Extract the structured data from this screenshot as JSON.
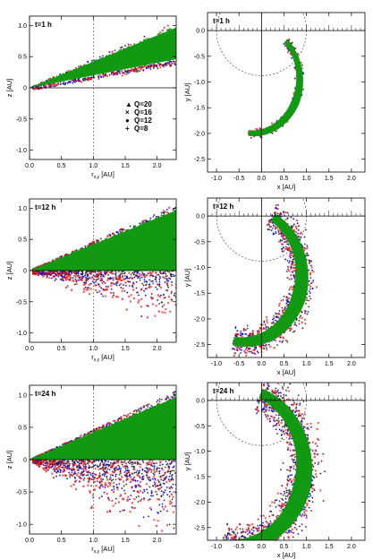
{
  "chart_data": [
    {
      "type": "scatter",
      "panel": "z-vs-rxy",
      "time_label": "t=1 h",
      "xlabel": "r_{x,y} [AU]",
      "ylabel": "z [AU]",
      "xlim": [
        0,
        2.3
      ],
      "ylim": [
        -1.15,
        1.15
      ],
      "xticks": [
        "0.0",
        "0.5",
        "1.0",
        "1.5",
        "2.0"
      ],
      "yticks": [
        "-1.0",
        "-0.5",
        "0",
        "0.5",
        "1.0"
      ],
      "ref_line_x": 1.0,
      "legend": {
        "placement": "center-right",
        "entries": [
          {
            "symbol": "▲",
            "label": "Q=20",
            "color": "#119911"
          },
          {
            "symbol": "×",
            "label": "Q=16",
            "color": "#dd1111"
          },
          {
            "symbol": "●",
            "label": "Q=12",
            "color": "#1111dd"
          },
          {
            "symbol": "+",
            "label": "Q=8",
            "color": "#111111"
          }
        ]
      },
      "series_colors": {
        "Q20": "#119911",
        "Q16": "#dd1111",
        "Q12": "#1111dd",
        "Q8": "#111111"
      },
      "wedge": {
        "upper_slope": 0.42,
        "lower_slope": 0.2,
        "lower_spread": 0.05
      }
    },
    {
      "type": "scatter",
      "panel": "y-vs-x",
      "time_label": "t=1 h",
      "xlabel": "x [AU]",
      "ylabel": "y [AU]",
      "xlim": [
        -1.2,
        2.3
      ],
      "ylim": [
        -2.75,
        0.35
      ],
      "xticks": [
        "-1.0",
        "-0.5",
        "0.0",
        "0.5",
        "1.0",
        "1.5",
        "2.0"
      ],
      "yticks": [
        "0.0",
        "-0.5",
        "-1.0",
        "-1.5",
        "-2.0",
        "-2.5"
      ],
      "ref_circle_radius": 1.0,
      "arc": {
        "center": [
          -0.2,
          -0.95
        ],
        "radius": 1.05,
        "width": 0.14,
        "spread": 0.05,
        "theta_start": -95,
        "theta_end": 45
      }
    },
    {
      "type": "scatter",
      "panel": "z-vs-rxy",
      "time_label": "t=12 h",
      "xlabel": "r_{x,y} [AU]",
      "ylabel": "z [AU]",
      "xlim": [
        0,
        2.3
      ],
      "ylim": [
        -1.15,
        1.15
      ],
      "xticks": [
        "0.0",
        "0.5",
        "1.0",
        "1.5",
        "2.0"
      ],
      "yticks": [
        "-1.0",
        "-0.5",
        "0",
        "0.5",
        "1.0"
      ],
      "ref_line_x": 1.0,
      "wedge": {
        "upper_slope": 0.42,
        "lower_slope": 0.05,
        "lower_spread": 0.6
      }
    },
    {
      "type": "scatter",
      "panel": "y-vs-x",
      "time_label": "t=12 h",
      "xlabel": "x [AU]",
      "ylabel": "y [AU]",
      "xlim": [
        -1.2,
        2.3
      ],
      "ylim": [
        -2.75,
        0.35
      ],
      "xticks": [
        "-1.0",
        "-0.5",
        "0.0",
        "0.5",
        "1.0",
        "1.5",
        "2.0"
      ],
      "yticks": [
        "0.0",
        "-0.5",
        "-1.0",
        "-1.5",
        "-2.0",
        "-2.5"
      ],
      "ref_circle_radius": 1.0,
      "arc": {
        "center": [
          -0.4,
          -1.15
        ],
        "radius": 1.3,
        "width": 0.28,
        "spread": 0.35,
        "theta_start": -100,
        "theta_end": 62
      }
    },
    {
      "type": "scatter",
      "panel": "z-vs-rxy",
      "time_label": "t=24 h",
      "xlabel": "r_{x,y} [AU]",
      "ylabel": "z [AU]",
      "xlim": [
        0,
        2.3
      ],
      "ylim": [
        -1.15,
        1.15
      ],
      "xticks": [
        "0.0",
        "0.5",
        "1.0",
        "1.5",
        "2.0"
      ],
      "yticks": [
        "-1.0",
        "-0.5",
        "0",
        "0.5",
        "1.0"
      ],
      "ref_line_x": 1.0,
      "wedge": {
        "upper_slope": 0.42,
        "lower_slope": 0.05,
        "lower_spread": 0.9
      }
    },
    {
      "type": "scatter",
      "panel": "y-vs-x",
      "time_label": "t=24 h",
      "xlabel": "x [AU]",
      "ylabel": "y [AU]",
      "xlim": [
        -1.2,
        2.3
      ],
      "ylim": [
        -2.75,
        0.35
      ],
      "xticks": [
        "-1.0",
        "-0.5",
        "0.0",
        "0.5",
        "1.0",
        "1.5",
        "2.0"
      ],
      "yticks": [
        "0.0",
        "-0.5",
        "-1.0",
        "-1.5",
        "-2.0",
        "-2.5"
      ],
      "ref_circle_radius": 1.0,
      "arc": {
        "center": [
          -0.6,
          -1.3
        ],
        "radius": 1.55,
        "width": 0.35,
        "spread": 0.5,
        "theta_start": -100,
        "theta_end": 68
      }
    }
  ]
}
